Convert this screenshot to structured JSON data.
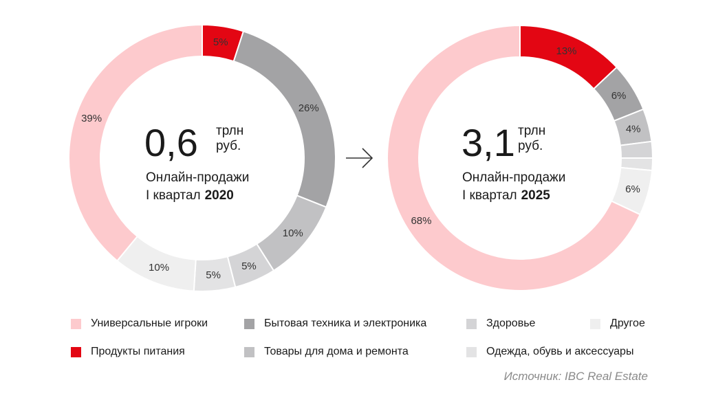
{
  "chart_data": [
    {
      "type": "pie",
      "donut": true,
      "center_value": "0,6",
      "center_unit_line1": "трлн",
      "center_unit_line2": "руб.",
      "center_label_line1": "Онлайн-продажи",
      "center_label_line2_prefix": "I квартал",
      "center_label_line2_bold": "2020",
      "slices": [
        {
          "category": "Продукты питания",
          "value": 5,
          "label": "5%",
          "color": "#e30613"
        },
        {
          "category": "Бытовая техника и электроника",
          "value": 26,
          "label": "26%",
          "color": "#a3a3a5"
        },
        {
          "category": "Товары для дома и ремонта",
          "value": 10,
          "label": "10%",
          "color": "#c1c1c3"
        },
        {
          "category": "Здоровье",
          "value": 5,
          "label": "5%",
          "color": "#d4d4d6"
        },
        {
          "category": "Одежда, обувь и аксессуары",
          "value": 5,
          "label": "5%",
          "color": "#e3e3e4"
        },
        {
          "category": "Другое",
          "value": 10,
          "label": "10%",
          "color": "#efefef"
        },
        {
          "category": "Универсальные игроки",
          "value": 39,
          "label": "39%",
          "color": "#fdcacd"
        }
      ]
    },
    {
      "type": "pie",
      "donut": true,
      "center_value": "3,1",
      "center_unit_line1": "трлн",
      "center_unit_line2": "руб.",
      "center_label_line1": "Онлайн-продажи",
      "center_label_line2_prefix": "I квартал",
      "center_label_line2_bold": "2025",
      "slices": [
        {
          "category": "Продукты питания",
          "value": 13,
          "label": "13%",
          "color": "#e30613"
        },
        {
          "category": "Бытовая техника и электроника",
          "value": 6,
          "label": "6%",
          "color": "#a3a3a5"
        },
        {
          "category": "Товары для дома и ремонта",
          "value": 4,
          "label": "4%",
          "color": "#c1c1c3"
        },
        {
          "category": "Здоровье",
          "value": 2,
          "label": "",
          "color": "#d4d4d6"
        },
        {
          "category": "Одежда, обувь и аксессуары",
          "value": 1.5,
          "label": "",
          "color": "#e3e3e4"
        },
        {
          "category": "Другое",
          "value": 5.5,
          "label": "6%",
          "color": "#efefef"
        },
        {
          "category": "Универсальные игроки",
          "value": 68,
          "label": "68%",
          "color": "#fdcacd"
        }
      ]
    }
  ],
  "arrow_icon": "arrow-right-icon",
  "legend": [
    {
      "label": "Универсальные игроки",
      "color": "#fdcacd"
    },
    {
      "label": "Продукты питания",
      "color": "#e30613"
    },
    {
      "label": "Бытовая техника и электроника",
      "color": "#a3a3a5"
    },
    {
      "label": "Товары для дома и ремонта",
      "color": "#c1c1c3"
    },
    {
      "label": "Здоровье",
      "color": "#d4d4d6"
    },
    {
      "label": "Одежда, обувь и аксессуары",
      "color": "#e3e3e4"
    },
    {
      "label": "Другое",
      "color": "#efefef"
    }
  ],
  "source": "Источник: IBC Real Estate"
}
